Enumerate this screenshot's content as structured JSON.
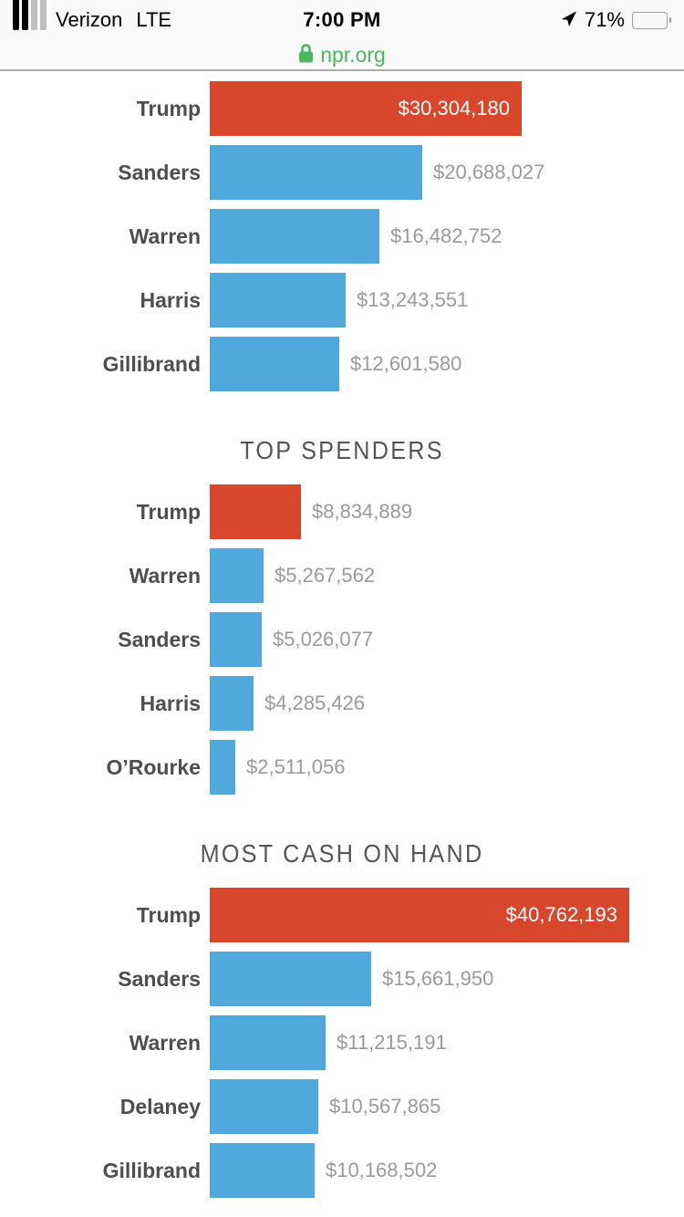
{
  "status_bar": {
    "carrier": "Verizon",
    "network": "LTE",
    "time": "7:00 PM",
    "battery_percent": "71%",
    "signal_bars_filled": 2,
    "signal_bars_total": 4
  },
  "url_bar": {
    "domain": "npr.org"
  },
  "colors": {
    "highlight_red": "#d8462c",
    "bar_blue": "#50a8dc",
    "secure_green": "#4cb75a",
    "label_gray": "#4e4e4e",
    "value_gray": "#9a9a9a",
    "title_gray": "#555555",
    "chrome_bg": "#f9f9f9"
  },
  "chart_data": [
    {
      "type": "bar",
      "orientation": "horizontal",
      "title": "",
      "categories": [
        "Trump",
        "Sanders",
        "Warren",
        "Harris",
        "Gillibrand"
      ],
      "values": [
        30304180,
        20688027,
        16482752,
        13243551,
        12601580
      ],
      "value_labels": [
        "$30,304,180",
        "$20,688,027",
        "$16,482,752",
        "$13,243,551",
        "$12,601,580"
      ],
      "bar_colors": [
        "#d8462c",
        "#50a8dc",
        "#50a8dc",
        "#50a8dc",
        "#50a8dc"
      ],
      "value_inside": [
        true,
        false,
        false,
        false,
        false
      ],
      "xlim": [
        0,
        40762193
      ],
      "grid": false,
      "legend": "none"
    },
    {
      "type": "bar",
      "orientation": "horizontal",
      "title": "TOP SPENDERS",
      "categories": [
        "Trump",
        "Warren",
        "Sanders",
        "Harris",
        "O’Rourke"
      ],
      "values": [
        8834889,
        5267562,
        5026077,
        4285426,
        2511056
      ],
      "value_labels": [
        "$8,834,889",
        "$5,267,562",
        "$5,026,077",
        "$4,285,426",
        "$2,511,056"
      ],
      "bar_colors": [
        "#d8462c",
        "#50a8dc",
        "#50a8dc",
        "#50a8dc",
        "#50a8dc"
      ],
      "value_inside": [
        false,
        false,
        false,
        false,
        false
      ],
      "xlim": [
        0,
        40762193
      ],
      "grid": false,
      "legend": "none"
    },
    {
      "type": "bar",
      "orientation": "horizontal",
      "title": "MOST CASH ON HAND",
      "categories": [
        "Trump",
        "Sanders",
        "Warren",
        "Delaney",
        "Gillibrand"
      ],
      "values": [
        40762193,
        15661950,
        11215191,
        10567865,
        10168502
      ],
      "value_labels": [
        "$40,762,193",
        "$15,661,950",
        "$11,215,191",
        "$10,567,865",
        "$10,168,502"
      ],
      "bar_colors": [
        "#d8462c",
        "#50a8dc",
        "#50a8dc",
        "#50a8dc",
        "#50a8dc"
      ],
      "value_inside": [
        true,
        false,
        false,
        false,
        false
      ],
      "xlim": [
        0,
        40762193
      ],
      "grid": false,
      "legend": "none"
    }
  ]
}
